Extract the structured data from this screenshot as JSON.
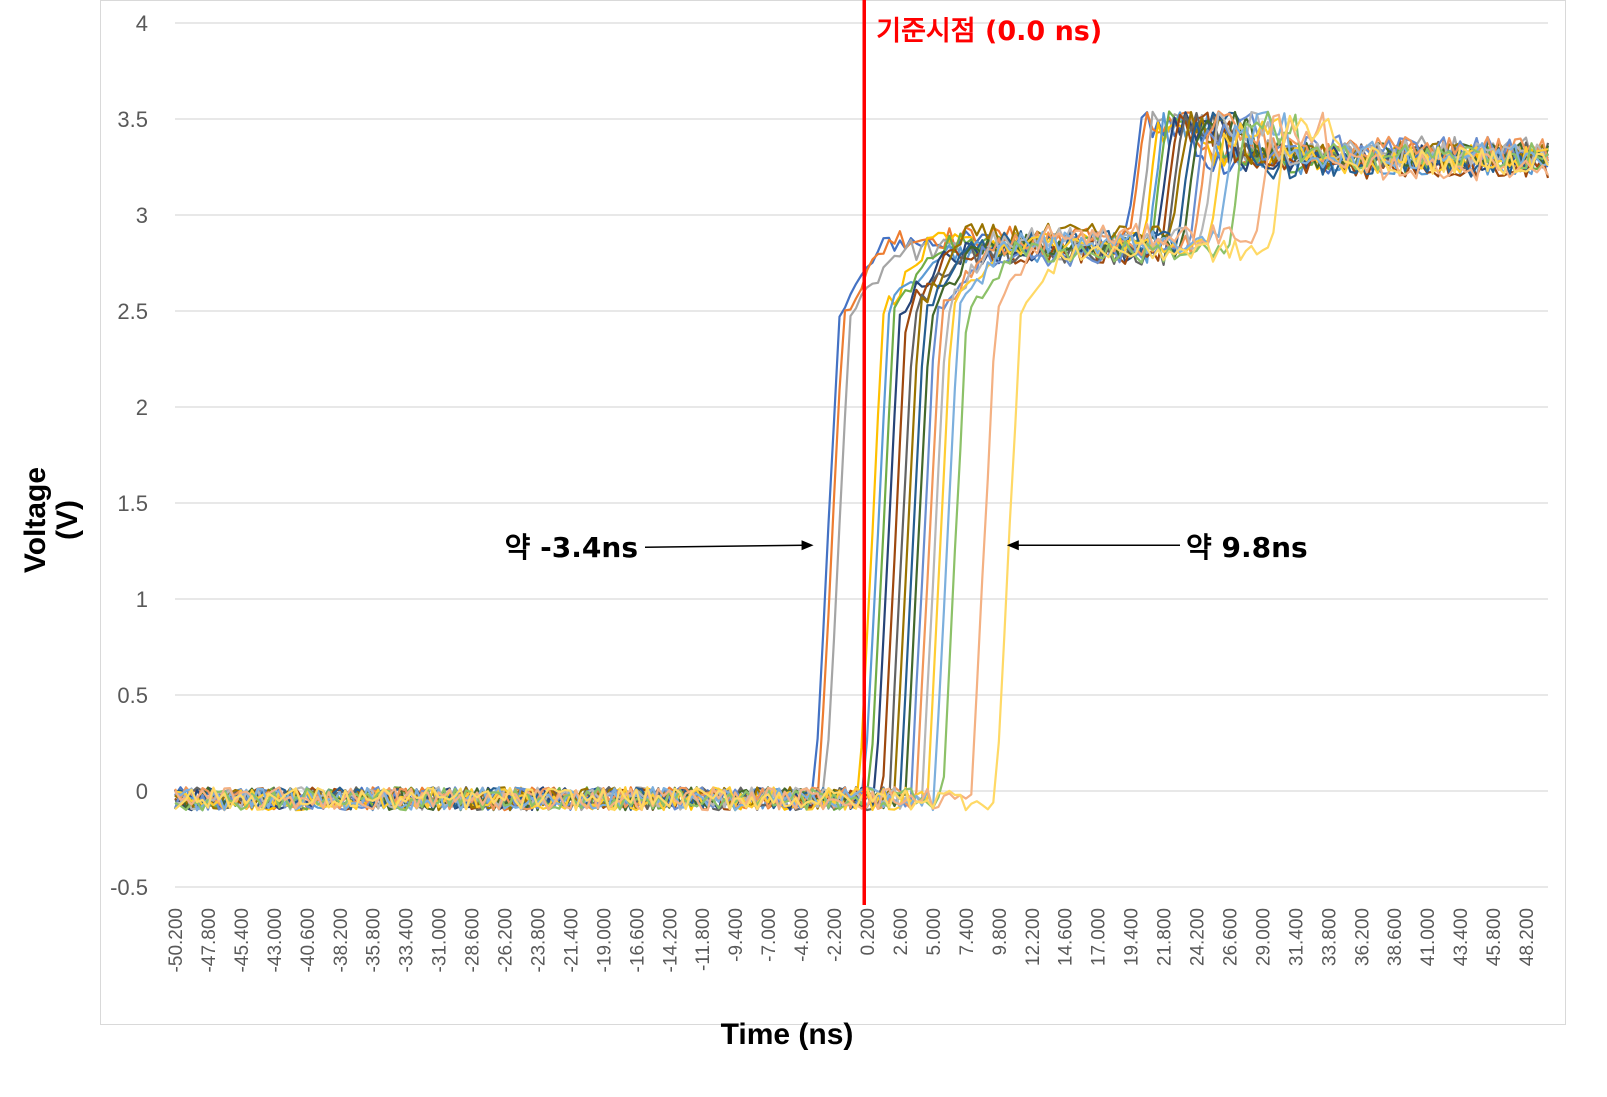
{
  "chart_data": {
    "type": "line",
    "xlabel": "Time (ns)",
    "ylabel_line1": "Voltage",
    "ylabel_line2": "(V)",
    "ylim": [
      -0.5,
      4
    ],
    "y_ticks": [
      -0.5,
      0,
      0.5,
      1,
      1.5,
      2,
      2.5,
      3,
      3.5,
      4
    ],
    "y_tick_labels": [
      "-0.5",
      "0",
      "0.5",
      "1",
      "1.5",
      "2",
      "2.5",
      "3",
      "3.5",
      "4"
    ],
    "xlim": [
      -50.2,
      49.8
    ],
    "x_tick_labels": [
      "-50.200",
      "-47.800",
      "-45.400",
      "-43.000",
      "-40.600",
      "-38.200",
      "-35.800",
      "-33.400",
      "-31.000",
      "-28.600",
      "-26.200",
      "-23.800",
      "-21.400",
      "-19.000",
      "-16.600",
      "-14.200",
      "-11.800",
      "-9.400",
      "-7.000",
      "-4.600",
      "-2.200",
      "0.200",
      "2.600",
      "5.000",
      "7.400",
      "9.800",
      "12.200",
      "14.600",
      "17.000",
      "19.400",
      "21.800",
      "24.200",
      "26.600",
      "29.000",
      "31.400",
      "33.800",
      "36.200",
      "38.600",
      "41.000",
      "43.400",
      "45.800",
      "48.200"
    ],
    "grid": true,
    "legend": "none",
    "reference_line": {
      "x": 0.0,
      "label": "기준시점 (0.0 ns)",
      "color": "#ff0000"
    },
    "annotations": [
      {
        "text": "약 -3.4ns",
        "x": -3.4,
        "y": 1.28
      },
      {
        "text": "약 9.8ns",
        "x": 9.8,
        "y": 1.28
      }
    ],
    "series_colors": [
      "#4472c4",
      "#ed7d31",
      "#a5a5a5",
      "#ffc000",
      "#5b9bd5",
      "#70ad47",
      "#264478",
      "#9e480e",
      "#636363",
      "#997300",
      "#255e91",
      "#43682b",
      "#698ed0",
      "#f1975a",
      "#b7b7b7",
      "#ffcd33",
      "#7cafdd",
      "#8cc168",
      "#f4b183",
      "#ffd966"
    ],
    "series": [
      {
        "t_rise": -3.4,
        "t_step2": 19.0
      },
      {
        "t_rise": -3.1,
        "t_step2": 19.3
      },
      {
        "t_rise": -2.6,
        "t_step2": 19.8
      },
      {
        "t_rise": -0.2,
        "t_step2": 20.3
      },
      {
        "t_rise": 0.2,
        "t_step2": 20.6
      },
      {
        "t_rise": 0.6,
        "t_step2": 20.9
      },
      {
        "t_rise": 1.0,
        "t_step2": 21.2
      },
      {
        "t_rise": 1.5,
        "t_step2": 21.6
      },
      {
        "t_rise": 2.0,
        "t_step2": 22.0
      },
      {
        "t_rise": 2.4,
        "t_step2": 22.4
      },
      {
        "t_rise": 2.8,
        "t_step2": 22.8
      },
      {
        "t_rise": 3.2,
        "t_step2": 23.2
      },
      {
        "t_rise": 3.6,
        "t_step2": 23.6
      },
      {
        "t_rise": 4.0,
        "t_step2": 24.0
      },
      {
        "t_rise": 4.4,
        "t_step2": 24.6
      },
      {
        "t_rise": 4.8,
        "t_step2": 25.2
      },
      {
        "t_rise": 5.3,
        "t_step2": 25.8
      },
      {
        "t_rise": 5.9,
        "t_step2": 26.6
      },
      {
        "t_rise": 8.0,
        "t_step2": 28.6
      },
      {
        "t_rise": 9.8,
        "t_step2": 29.6
      }
    ]
  }
}
